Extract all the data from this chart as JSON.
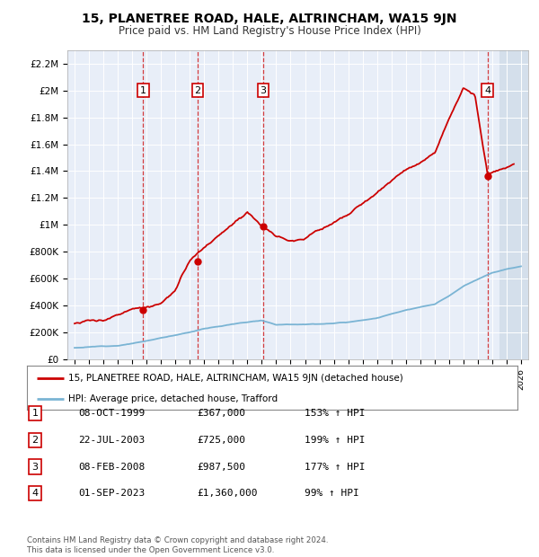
{
  "title": "15, PLANETREE ROAD, HALE, ALTRINCHAM, WA15 9JN",
  "subtitle": "Price paid vs. HM Land Registry's House Price Index (HPI)",
  "ylabel_ticks": [
    "£0",
    "£200K",
    "£400K",
    "£600K",
    "£800K",
    "£1M",
    "£1.2M",
    "£1.4M",
    "£1.6M",
    "£1.8M",
    "£2M",
    "£2.2M"
  ],
  "ylabel_values": [
    0,
    200000,
    400000,
    600000,
    800000,
    1000000,
    1200000,
    1400000,
    1600000,
    1800000,
    2000000,
    2200000
  ],
  "xlim_start": 1994.5,
  "xlim_end": 2026.5,
  "ylim_min": 0,
  "ylim_max": 2300000,
  "purchases": [
    {
      "date": 1999.77,
      "price": 367000,
      "label": "1"
    },
    {
      "date": 2003.55,
      "price": 725000,
      "label": "2"
    },
    {
      "date": 2008.1,
      "price": 987500,
      "label": "3"
    },
    {
      "date": 2023.67,
      "price": 1360000,
      "label": "4"
    }
  ],
  "legend_entries": [
    {
      "label": "15, PLANETREE ROAD, HALE, ALTRINCHAM, WA15 9JN (detached house)",
      "color": "#cc0000"
    },
    {
      "label": "HPI: Average price, detached house, Trafford",
      "color": "#7ab4d4"
    }
  ],
  "table_rows": [
    {
      "num": "1",
      "date": "08-OCT-1999",
      "price": "£367,000",
      "hpi": "153% ↑ HPI"
    },
    {
      "num": "2",
      "date": "22-JUL-2003",
      "price": "£725,000",
      "hpi": "199% ↑ HPI"
    },
    {
      "num": "3",
      "date": "08-FEB-2008",
      "price": "£987,500",
      "hpi": "177% ↑ HPI"
    },
    {
      "num": "4",
      "date": "01-SEP-2023",
      "price": "£1,360,000",
      "hpi": "99% ↑ HPI"
    }
  ],
  "footer": "Contains HM Land Registry data © Crown copyright and database right 2024.\nThis data is licensed under the Open Government Licence v3.0.",
  "plot_bg": "#e8eef8",
  "hatch_bg": "#d0dce8"
}
